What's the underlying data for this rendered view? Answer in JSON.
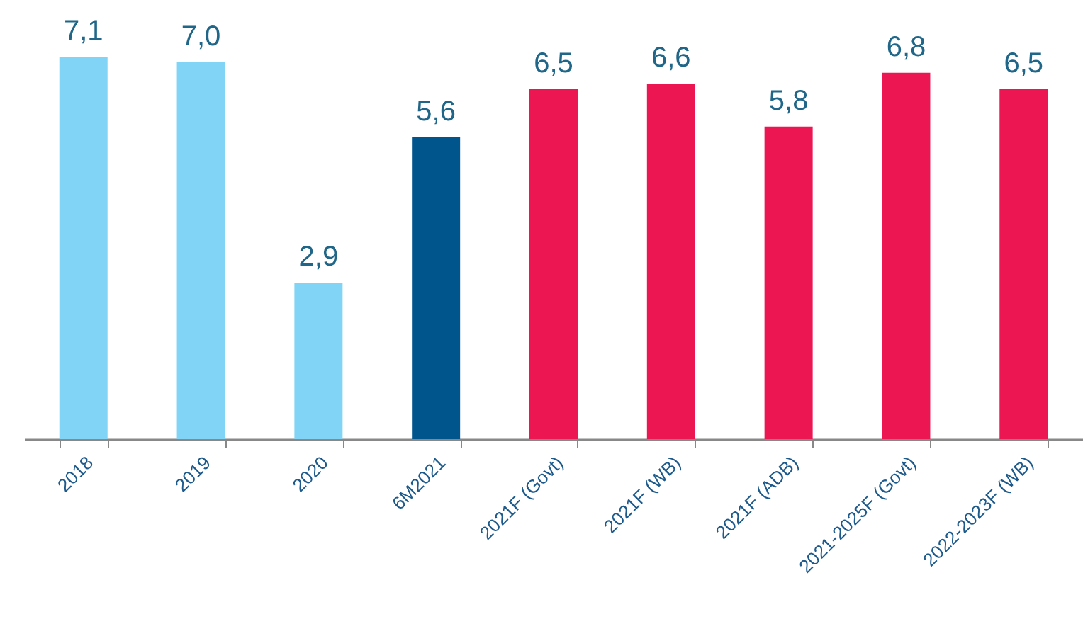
{
  "chart_data": {
    "type": "bar",
    "categories": [
      "2018",
      "2019",
      "2020",
      "6M2021",
      "2021F (Govt)",
      "2021F (WB)",
      "2021F (ADB)",
      "2021-2025F (Govt)",
      "2022-2023F (WB)"
    ],
    "values": [
      7.1,
      7.0,
      2.9,
      5.6,
      6.5,
      6.6,
      5.8,
      6.8,
      6.5
    ],
    "value_labels": [
      "7,1",
      "7,0",
      "2,9",
      "5,6",
      "6,5",
      "6,6",
      "5,8",
      "6,8",
      "6,5"
    ],
    "colors": [
      "#81d4f5",
      "#81d4f5",
      "#81d4f5",
      "#00558c",
      "#ec1653",
      "#ec1653",
      "#ec1653",
      "#ec1653",
      "#ec1653"
    ],
    "grid": false
  }
}
